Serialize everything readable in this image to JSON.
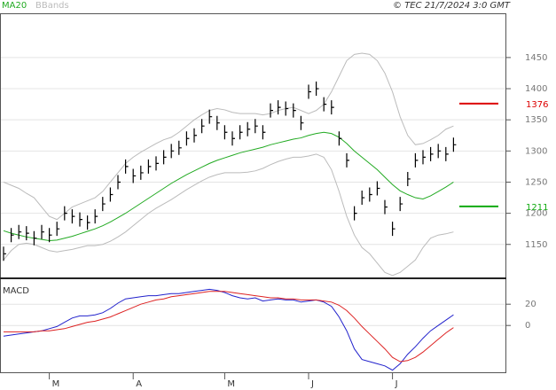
{
  "chart_data": [
    {
      "type": "stock",
      "credit": "© TEC 21/7/2024 3:0 GMT",
      "categories": [
        null,
        null,
        null,
        null,
        null,
        null,
        "M",
        null,
        null,
        null,
        null,
        null,
        null,
        null,
        null,
        null,
        null,
        "A",
        null,
        null,
        null,
        null,
        null,
        null,
        null,
        null,
        null,
        null,
        null,
        "M",
        null,
        null,
        null,
        null,
        null,
        null,
        null,
        null,
        null,
        null,
        "J",
        null,
        null,
        null,
        null,
        null,
        null,
        null,
        null,
        null,
        null,
        "J",
        null,
        null,
        null,
        null,
        null,
        null,
        null,
        null
      ],
      "values": [
        1135,
        1165,
        1170,
        1168,
        1160,
        1170,
        1165,
        1175,
        1200,
        1195,
        1190,
        1185,
        1195,
        1215,
        1230,
        1250,
        1275,
        1260,
        1265,
        1275,
        1280,
        1290,
        1300,
        1305,
        1320,
        1325,
        1340,
        1355,
        1345,
        1330,
        1320,
        1330,
        1335,
        1340,
        1330,
        1365,
        1370,
        1368,
        1365,
        1345,
        1395,
        1400,
        1375,
        1370,
        1320,
        1285,
        1200,
        1225,
        1230,
        1240,
        1210,
        1175,
        1215,
        1255,
        1285,
        1290,
        1295,
        1300,
        1295,
        1310
      ],
      "color": "#000000",
      "series": [
        {
          "name": "MA20",
          "color": "#22aa22",
          "values": [
            1172,
            1168,
            1165,
            1162,
            1160,
            1158,
            1156,
            1157,
            1160,
            1163,
            1167,
            1171,
            1175,
            1180,
            1186,
            1193,
            1200,
            1208,
            1216,
            1224,
            1232,
            1240,
            1248,
            1255,
            1262,
            1268,
            1274,
            1280,
            1285,
            1289,
            1293,
            1297,
            1300,
            1303,
            1306,
            1310,
            1313,
            1316,
            1319,
            1321,
            1325,
            1328,
            1330,
            1328,
            1322,
            1312,
            1300,
            1290,
            1280,
            1270,
            1258,
            1246,
            1236,
            1230,
            1225,
            1223,
            1228,
            1235,
            1242,
            1250
          ]
        },
        {
          "name": "BBands",
          "color": "#bbbbbb",
          "values": [
            1250,
            1245,
            1240,
            1232,
            1225,
            1210,
            1195,
            1190,
            1200,
            1210,
            1215,
            1220,
            1225,
            1235,
            1250,
            1265,
            1280,
            1290,
            1298,
            1305,
            1312,
            1318,
            1322,
            1330,
            1340,
            1350,
            1358,
            1365,
            1368,
            1366,
            1362,
            1360,
            1360,
            1360,
            1358,
            1360,
            1365,
            1368,
            1370,
            1365,
            1360,
            1365,
            1375,
            1395,
            1420,
            1445,
            1455,
            1457,
            1455,
            1445,
            1425,
            1395,
            1355,
            1325,
            1310,
            1312,
            1318,
            1325,
            1335,
            1340
          ],
          "lower": [
            1125,
            1140,
            1150,
            1152,
            1150,
            1145,
            1140,
            1138,
            1140,
            1142,
            1145,
            1148,
            1148,
            1150,
            1155,
            1162,
            1170,
            1180,
            1190,
            1200,
            1208,
            1215,
            1222,
            1230,
            1238,
            1245,
            1252,
            1258,
            1262,
            1265,
            1265,
            1265,
            1266,
            1268,
            1272,
            1278,
            1283,
            1287,
            1290,
            1290,
            1292,
            1295,
            1290,
            1270,
            1235,
            1195,
            1165,
            1145,
            1135,
            1120,
            1105,
            1100,
            1105,
            1115,
            1125,
            1145,
            1160,
            1165,
            1167,
            1170
          ]
        }
      ],
      "levels": [
        {
          "value": 1376,
          "color": "#dd0000"
        },
        {
          "value": 1211,
          "color": "#11aa11"
        }
      ],
      "ylim": [
        1097,
        1521
      ],
      "yticks": [
        1150,
        1200,
        1250,
        1300,
        1350,
        1400,
        1450
      ],
      "grid": true
    },
    {
      "type": "line",
      "title": "MACD",
      "series": [
        {
          "color": "#2222cc",
          "values": [
            -10,
            -9,
            -8,
            -7,
            -6,
            -5,
            -3,
            -1,
            3,
            7,
            9,
            9,
            10,
            12,
            16,
            21,
            25,
            26,
            27,
            28,
            28,
            29,
            30,
            30,
            31,
            32,
            33,
            34,
            33,
            31,
            28,
            26,
            25,
            26,
            23,
            24,
            25,
            24,
            24,
            22,
            23,
            24,
            22,
            18,
            8,
            -5,
            -22,
            -32,
            -34,
            -36,
            -38,
            -42,
            -36,
            -27,
            -20,
            -12,
            -5,
            0,
            5,
            10
          ]
        },
        {
          "color": "#dd2222",
          "values": [
            -6,
            -6,
            -6,
            -6,
            -6,
            -5,
            -5,
            -4,
            -3,
            -1,
            1,
            3,
            4,
            6,
            8,
            11,
            14,
            17,
            20,
            22,
            24,
            25,
            27,
            28,
            29,
            30,
            31,
            32,
            32,
            32,
            31,
            30,
            29,
            28,
            27,
            26,
            26,
            25,
            25,
            24,
            24,
            24,
            23,
            22,
            19,
            14,
            7,
            -1,
            -8,
            -15,
            -22,
            -30,
            -34,
            -33,
            -30,
            -25,
            -19,
            -13,
            -7,
            -2
          ]
        }
      ],
      "ylim": [
        -44,
        41
      ],
      "yticks": [
        0,
        20
      ],
      "grid": true
    }
  ]
}
